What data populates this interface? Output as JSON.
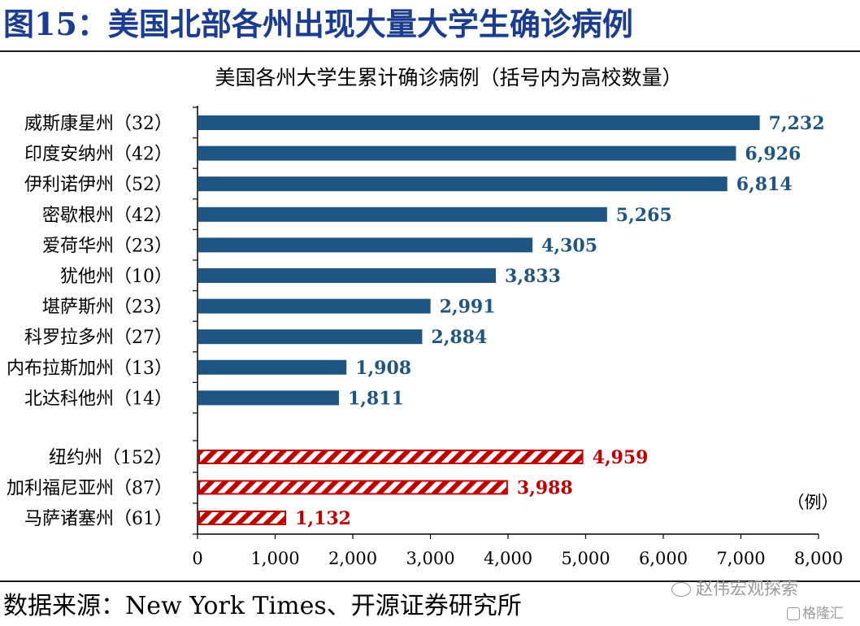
{
  "figure_title": "图15：美国北部各州出现大量大学生确诊病例",
  "source_text": "数据来源：New York Times、开源证券研究所",
  "watermarks": {
    "wechat": "赵伟宏观探索",
    "gelonghui": "格隆汇"
  },
  "colors": {
    "blue_bar": "#1f5582",
    "blue_label": "#1f5582",
    "red": "#c00000",
    "title": "#1b3d8f"
  },
  "chart_data": {
    "type": "bar",
    "orientation": "horizontal",
    "title": "美国各州大学生累计确诊病例（括号内为高校数量）",
    "unit_label": "（例）",
    "xlim": [
      0,
      8000
    ],
    "xticks": [
      "0",
      "1,000",
      "2,000",
      "3,000",
      "4,000",
      "5,000",
      "6,000",
      "7,000",
      "8,000"
    ],
    "grid": false,
    "series": [
      {
        "style": "solid-blue",
        "categories": [
          "威斯康星州（32）",
          "印度安纳州（42）",
          "伊利诺伊州（52）",
          "密歇根州（42）",
          "爱荷华州（23）",
          "犹他州（10）",
          "堪萨斯州（23）",
          "科罗拉多州（27）",
          "内布拉斯加州（13）",
          "北达科他州（14）"
        ],
        "values": [
          7232,
          6926,
          6814,
          5265,
          4305,
          3833,
          2991,
          2884,
          1908,
          1811
        ],
        "value_labels": [
          "7,232",
          "6,926",
          "6,814",
          "5,265",
          "4,305",
          "3,833",
          "2,991",
          "2,884",
          "1,908",
          "1,811"
        ]
      },
      {
        "style": "hatched-red",
        "categories": [
          "纽约州（152）",
          "加利福尼亚州（87）",
          "马萨诸塞州（61）"
        ],
        "values": [
          4959,
          3988,
          1132
        ],
        "value_labels": [
          "4,959",
          "3,988",
          "1,132"
        ]
      }
    ]
  }
}
